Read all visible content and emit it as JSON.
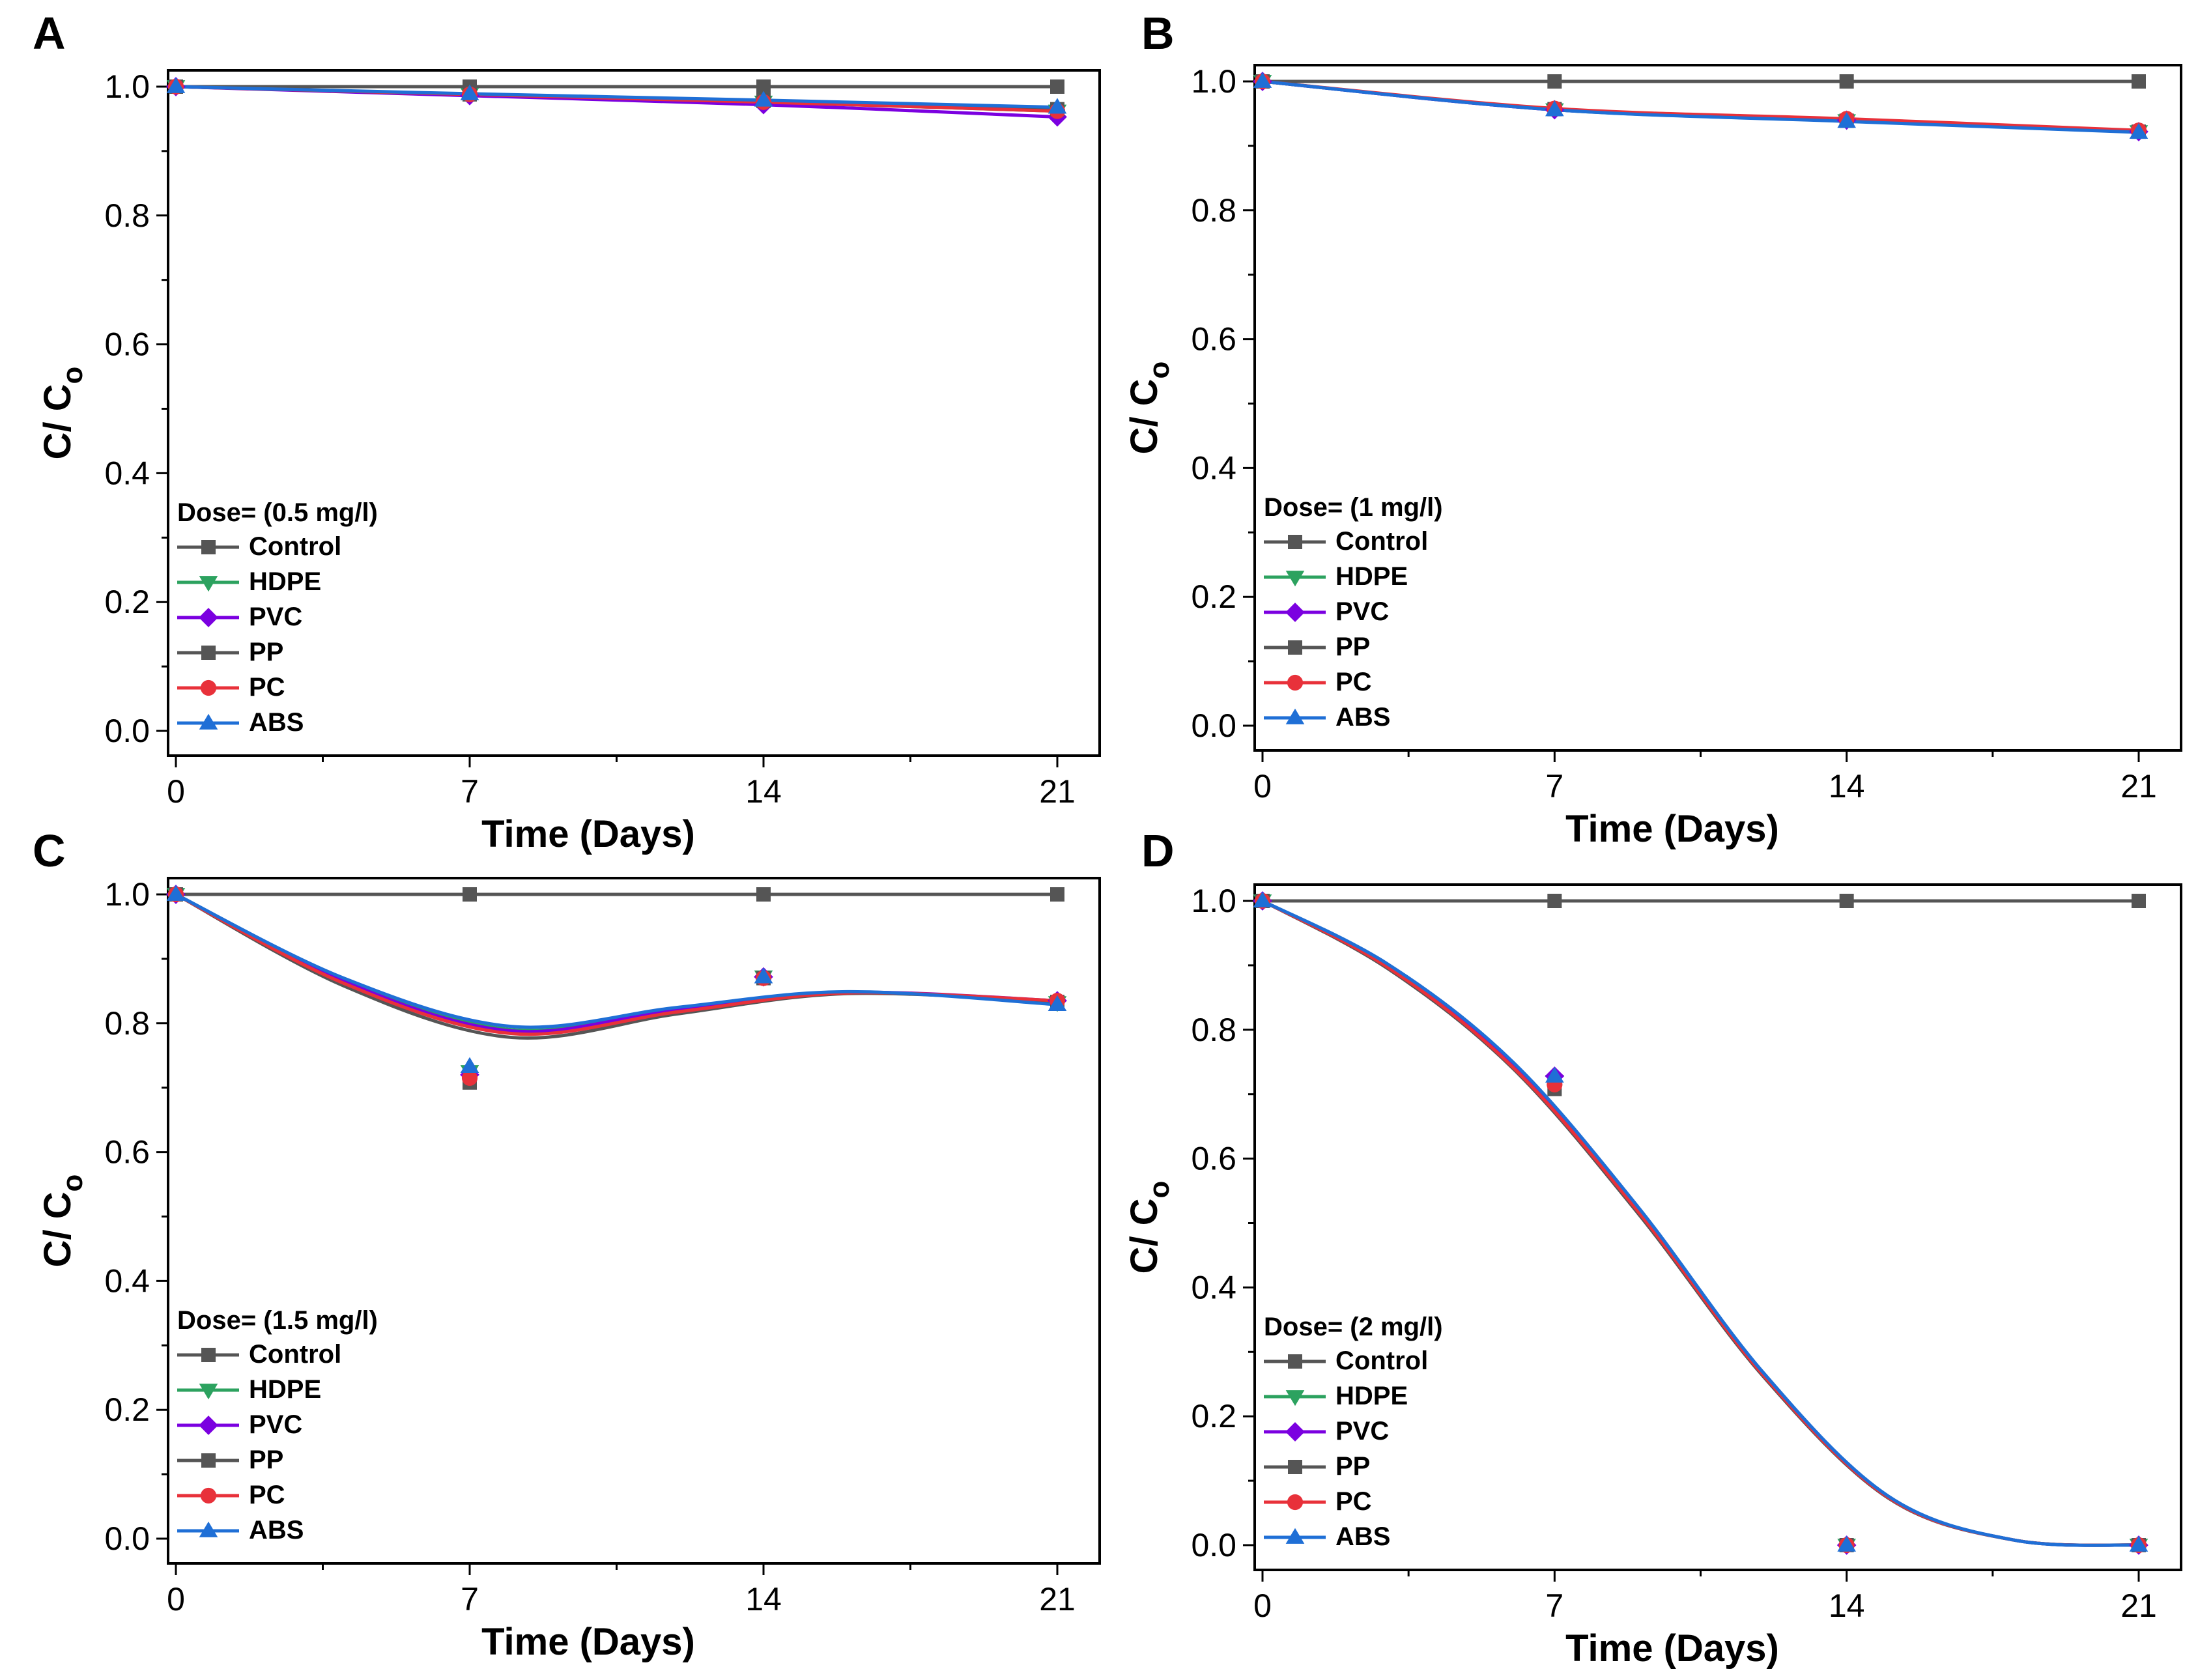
{
  "chart_data": [
    {
      "type": "line",
      "panel": "A",
      "xlabel": "Time (Days)",
      "ylabel": "C/ C",
      "ylabel_sub": "o",
      "xlim": [
        0,
        21
      ],
      "ylim": [
        0.0,
        1.0
      ],
      "xticks": [
        "0",
        "7",
        "14",
        "21"
      ],
      "yticks": [
        "0.0",
        "0.2",
        "0.4",
        "0.6",
        "0.8",
        "1.0"
      ],
      "legend_title": "Dose= (0.5 mg/l)",
      "legend_position": "bottom-left",
      "x": [
        0,
        7,
        14,
        21
      ],
      "series": [
        {
          "name": "Control",
          "marker": "square",
          "color": "#555555",
          "values": [
            1.0,
            1.0,
            1.0,
            1.0
          ]
        },
        {
          "name": "HDPE",
          "marker": "triangle-down",
          "color": "#2ca25f",
          "values": [
            1.0,
            0.988,
            0.976,
            0.962
          ]
        },
        {
          "name": "PVC",
          "marker": "diamond",
          "color": "#7b00e0",
          "values": [
            1.0,
            0.986,
            0.972,
            0.953
          ]
        },
        {
          "name": "PP",
          "marker": "square",
          "color": "#555555",
          "values": [
            1.0,
            0.988,
            0.978,
            0.965
          ]
        },
        {
          "name": "PC",
          "marker": "circle",
          "color": "#e8313a",
          "values": [
            1.0,
            0.988,
            0.976,
            0.962
          ]
        },
        {
          "name": "ABS",
          "marker": "triangle-up",
          "color": "#1f6fd6",
          "values": [
            1.0,
            0.989,
            0.979,
            0.968
          ]
        }
      ]
    },
    {
      "type": "line",
      "panel": "B",
      "xlabel": "Time (Days)",
      "ylabel": "C/ C",
      "ylabel_sub": "o",
      "xlim": [
        0,
        21
      ],
      "ylim": [
        0.0,
        1.0
      ],
      "xticks": [
        "0",
        "7",
        "14",
        "21"
      ],
      "yticks": [
        "0.0",
        "0.2",
        "0.4",
        "0.6",
        "0.8",
        "1.0"
      ],
      "legend_title": "Dose= (1 mg/l)",
      "legend_position": "bottom-left",
      "x": [
        0,
        7,
        14,
        21
      ],
      "series": [
        {
          "name": "Control",
          "marker": "square",
          "color": "#555555",
          "values": [
            1.0,
            1.0,
            1.0,
            1.0
          ]
        },
        {
          "name": "HDPE",
          "marker": "triangle-down",
          "color": "#2ca25f",
          "values": [
            1.0,
            0.956,
            0.939,
            0.922
          ]
        },
        {
          "name": "PVC",
          "marker": "diamond",
          "color": "#7b00e0",
          "values": [
            1.0,
            0.956,
            0.94,
            0.922
          ]
        },
        {
          "name": "PP",
          "marker": "square",
          "color": "#555555",
          "values": [
            1.0,
            0.957,
            0.939,
            0.922
          ]
        },
        {
          "name": "PC",
          "marker": "circle",
          "color": "#e8313a",
          "values": [
            1.0,
            0.958,
            0.942,
            0.924
          ]
        },
        {
          "name": "ABS",
          "marker": "triangle-up",
          "color": "#1f6fd6",
          "values": [
            1.0,
            0.956,
            0.938,
            0.921
          ]
        }
      ]
    },
    {
      "type": "line",
      "panel": "C",
      "xlabel": "Time (Days)",
      "ylabel": "C/ C",
      "ylabel_sub": "o",
      "xlim": [
        0,
        21
      ],
      "ylim": [
        0.0,
        1.0
      ],
      "xticks": [
        "0",
        "7",
        "14",
        "21"
      ],
      "yticks": [
        "0.0",
        "0.2",
        "0.4",
        "0.6",
        "0.8",
        "1.0"
      ],
      "legend_title": "Dose= (1.5 mg/l)",
      "legend_position": "bottom-left",
      "x": [
        0,
        7,
        14,
        21
      ],
      "series": [
        {
          "name": "Control",
          "marker": "square",
          "color": "#555555",
          "values": [
            1.0,
            1.0,
            1.0,
            1.0
          ]
        },
        {
          "name": "HDPE",
          "marker": "triangle-down",
          "color": "#2ca25f",
          "values": [
            1.0,
            0.725,
            0.872,
            0.832
          ]
        },
        {
          "name": "PVC",
          "marker": "diamond",
          "color": "#7b00e0",
          "values": [
            1.0,
            0.72,
            0.872,
            0.835
          ]
        },
        {
          "name": "PP",
          "marker": "square",
          "color": "#555555",
          "values": [
            1.0,
            0.708,
            0.87,
            0.833
          ]
        },
        {
          "name": "PC",
          "marker": "circle",
          "color": "#e8313a",
          "values": [
            1.0,
            0.715,
            0.87,
            0.835
          ]
        },
        {
          "name": "ABS",
          "marker": "triangle-up",
          "color": "#1f6fd6",
          "values": [
            1.0,
            0.733,
            0.872,
            0.829
          ]
        }
      ]
    },
    {
      "type": "line",
      "panel": "D",
      "xlabel": "Time (Days)",
      "ylabel": "C/ C",
      "ylabel_sub": "o",
      "xlim": [
        0,
        21
      ],
      "ylim": [
        0.0,
        1.0
      ],
      "xticks": [
        "0",
        "7",
        "14",
        "21"
      ],
      "yticks": [
        "0.0",
        "0.2",
        "0.4",
        "0.6",
        "0.8",
        "1.0"
      ],
      "legend_title": "Dose= (2 mg/l)",
      "legend_position": "bottom-left",
      "x": [
        0,
        7,
        14,
        21
      ],
      "series": [
        {
          "name": "Control",
          "marker": "square",
          "color": "#555555",
          "values": [
            1.0,
            1.0,
            1.0,
            1.0
          ]
        },
        {
          "name": "HDPE",
          "marker": "triangle-down",
          "color": "#2ca25f",
          "values": [
            1.0,
            0.72,
            0.0,
            0.0
          ]
        },
        {
          "name": "PVC",
          "marker": "diamond",
          "color": "#7b00e0",
          "values": [
            1.0,
            0.728,
            0.0,
            0.0
          ]
        },
        {
          "name": "PP",
          "marker": "square",
          "color": "#555555",
          "values": [
            1.0,
            0.708,
            0.0,
            0.0
          ]
        },
        {
          "name": "PC",
          "marker": "circle",
          "color": "#e8313a",
          "values": [
            1.0,
            0.715,
            0.0,
            0.0
          ]
        },
        {
          "name": "ABS",
          "marker": "triangle-up",
          "color": "#1f6fd6",
          "values": [
            1.0,
            0.728,
            0.0,
            0.0
          ]
        }
      ]
    }
  ]
}
